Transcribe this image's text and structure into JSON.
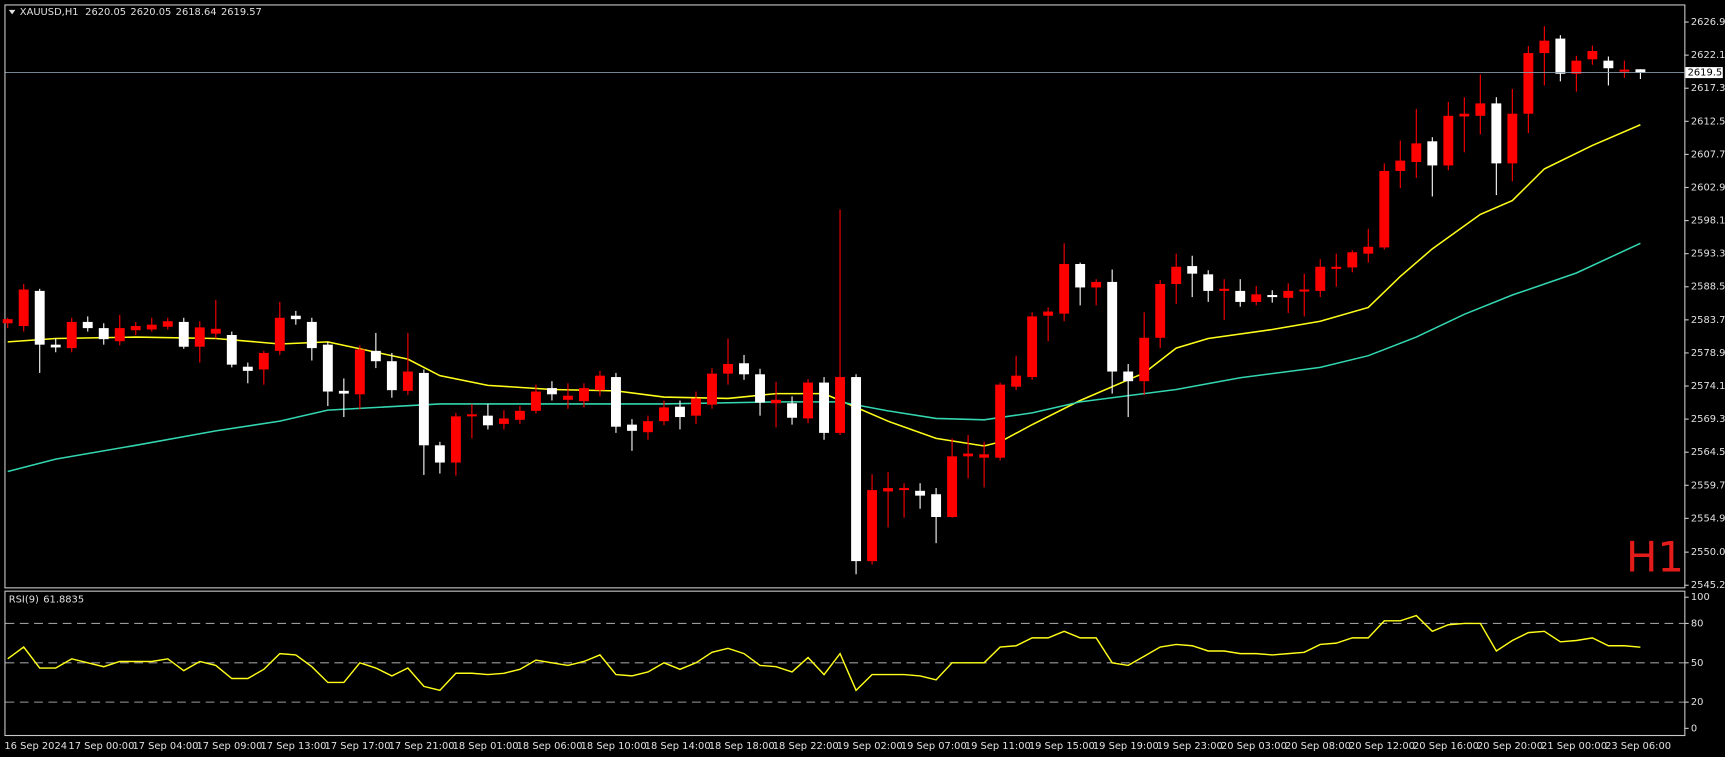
{
  "chart_data": [
    {
      "type": "candlestick",
      "title": "XAUUSD,H1",
      "watermark": "H1",
      "categories": [
        "16 Sep 2024",
        null,
        null,
        null,
        "17 Sep 00:00",
        null,
        null,
        null,
        "17 Sep 04:00",
        null,
        null,
        null,
        "17 Sep 09:00",
        null,
        null,
        null,
        "17 Sep 13:00",
        null,
        null,
        null,
        "17 Sep 17:00",
        null,
        null,
        null,
        "17 Sep 21:00",
        null,
        null,
        null,
        "18 Sep 01:00",
        null,
        null,
        null,
        "18 Sep 06:00",
        null,
        null,
        null,
        "18 Sep 10:00",
        null,
        null,
        null,
        "18 Sep 14:00",
        null,
        null,
        null,
        "18 Sep 18:00",
        null,
        null,
        null,
        "18 Sep 22:00",
        null,
        null,
        null,
        "19 Sep 02:00",
        null,
        null,
        null,
        "19 Sep 07:00",
        null,
        null,
        null,
        "19 Sep 11:00",
        null,
        null,
        null,
        "19 Sep 15:00",
        null,
        null,
        null,
        "19 Sep 19:00",
        null,
        null,
        null,
        "19 Sep 23:00",
        null,
        null,
        null,
        "20 Sep 03:00",
        null,
        null,
        null,
        "20 Sep 08:00",
        null,
        null,
        null,
        "20 Sep 12:00",
        null,
        null,
        null,
        "20 Sep 16:00",
        null,
        null,
        null,
        "20 Sep 20:00",
        null,
        null,
        null,
        "21 Sep 00:00",
        null,
        null,
        null,
        "23 Sep 06:00",
        null,
        null
      ],
      "open": [
        2583.2,
        2582.8,
        2587.9,
        2580.1,
        2579.6,
        2583.4,
        2582.5,
        2580.6,
        2582.2,
        2582.3,
        2582.7,
        2583.4,
        2579.8,
        2581.7,
        2581.5,
        2576.9,
        2576.5,
        2579.2,
        2584.3,
        2583.4,
        2580.1,
        2573.4,
        2572.9,
        2579.2,
        2577.7,
        2573.4,
        2576.0,
        2565.5,
        2563,
        2569.7,
        2569.8,
        2568.6,
        2569.2,
        2570.5,
        2573.8,
        2572.1,
        2571.9,
        2573.5,
        2575.4,
        2568.5,
        2567.4,
        2569,
        2571.1,
        2569.8,
        2571.4,
        2575.9,
        2577.4,
        2575.8,
        2571.6,
        2571.6,
        2569.4,
        2574.6,
        2567.3,
        2575.4,
        2548.7,
        2558.8,
        2559.0,
        2558.9,
        2558.4,
        2555.1,
        2563.9,
        2563.7,
        2563.7,
        2574,
        2575.4,
        2584.3,
        2584.6,
        2591.8,
        2588.4,
        2589.2,
        2576.2,
        2574.8,
        2581.1,
        2588.9,
        2591.5,
        2590.3,
        2587.9,
        2587.9,
        2586.3,
        2587.3,
        2586.9,
        2587.8,
        2587.9,
        2591.1,
        2591.3,
        2593.3,
        2594.2,
        2605.3,
        2606.6,
        2609.6,
        2606.1,
        2613.2,
        2613.3,
        2615.1,
        2606.4,
        2613.6,
        2622.4,
        2624.5,
        2619.4,
        2621.5,
        2621.3,
        2619.7,
        2620.05
      ],
      "high": [
        2584,
        2588.9,
        2588.2,
        2581,
        2584,
        2584.2,
        2583.2,
        2584.4,
        2583.4,
        2584,
        2584,
        2584,
        2583.5,
        2586.6,
        2582,
        2577.5,
        2579.2,
        2586.3,
        2585,
        2584,
        2580.5,
        2575.2,
        2580,
        2581.8,
        2578.9,
        2581.8,
        2576.5,
        2566,
        2570.2,
        2571.5,
        2571.5,
        2570.6,
        2571.2,
        2574.3,
        2574.8,
        2574.5,
        2574.5,
        2576.3,
        2576,
        2569.3,
        2569.8,
        2572,
        2572,
        2573.3,
        2576.7,
        2581,
        2578.6,
        2576.6,
        2574.7,
        2572.6,
        2575.1,
        2575.4,
        2599.7,
        2575.8,
        2561.3,
        2561.6,
        2560,
        2560,
        2559.3,
        2566.5,
        2567,
        2566,
        2574.6,
        2578.5,
        2584.8,
        2585.5,
        2594.8,
        2592,
        2589.6,
        2591,
        2577.3,
        2584.8,
        2589.5,
        2593.3,
        2593,
        2590.9,
        2589.6,
        2589.6,
        2588.6,
        2588,
        2589,
        2590.4,
        2592.5,
        2593.3,
        2593.8,
        2596.9,
        2606.4,
        2609.7,
        2614.3,
        2610.2,
        2615.3,
        2616,
        2619.3,
        2616,
        2617.2,
        2623.4,
        2626.3,
        2625,
        2622,
        2623.5,
        2621.9,
        2621.3,
        2620.05
      ],
      "low": [
        2582.5,
        2582,
        2576,
        2579,
        2579,
        2582,
        2580.1,
        2580,
        2581.5,
        2582,
        2582.3,
        2579.5,
        2577.5,
        2581,
        2576.8,
        2574.5,
        2574.3,
        2578.6,
        2583,
        2577.8,
        2571.2,
        2569.6,
        2570.7,
        2576.7,
        2572.4,
        2572.8,
        2561.2,
        2561.4,
        2561.1,
        2566.5,
        2567.8,
        2567.8,
        2568.6,
        2570.1,
        2572,
        2570.8,
        2571,
        2572.6,
        2567.3,
        2564.7,
        2566.3,
        2568.4,
        2567.8,
        2568.6,
        2570.8,
        2574.3,
        2575,
        2569.8,
        2568.1,
        2568.5,
        2568.7,
        2566.3,
        2567,
        2546.8,
        2548.2,
        2553.6,
        2555,
        2556.3,
        2551.3,
        2555,
        2560.7,
        2559.4,
        2563.3,
        2573.5,
        2575,
        2580.6,
        2583.5,
        2585.8,
        2585.8,
        2573,
        2569.6,
        2572.8,
        2579.6,
        2586,
        2587,
        2586.3,
        2583.7,
        2585.6,
        2585.8,
        2586.2,
        2584.7,
        2584.2,
        2587,
        2588.5,
        2590.6,
        2592,
        2593.9,
        2602.8,
        2604.3,
        2601.6,
        2605.4,
        2608,
        2610.6,
        2601.8,
        2603.8,
        2610.8,
        2617.7,
        2618.3,
        2616.8,
        2620.7,
        2617.7,
        2618.8,
        2618.64
      ],
      "close": [
        2583.8,
        2588.1,
        2580.1,
        2579.7,
        2583.4,
        2582.5,
        2580.9,
        2582.5,
        2582.8,
        2583,
        2583.5,
        2579.8,
        2582.6,
        2582.4,
        2577.2,
        2576.3,
        2578.9,
        2584,
        2583.8,
        2579.6,
        2573.3,
        2573.0,
        2579.4,
        2577.7,
        2573.5,
        2576.2,
        2565.5,
        2563,
        2569.7,
        2570,
        2568.4,
        2569.4,
        2570.5,
        2573.3,
        2572.9,
        2572.7,
        2573.8,
        2575.6,
        2568.2,
        2567.6,
        2569,
        2571,
        2569.6,
        2572.3,
        2575.9,
        2577.3,
        2575.8,
        2571.7,
        2572.1,
        2569.5,
        2574.6,
        2567.3,
        2575.4,
        2548.7,
        2559,
        2559.3,
        2559.3,
        2558.2,
        2555.1,
        2563.9,
        2564.3,
        2564.2,
        2574.3,
        2575.6,
        2584.2,
        2584.9,
        2591.8,
        2588.4,
        2589.2,
        2576.2,
        2574.8,
        2581.1,
        2588.9,
        2591.4,
        2590.4,
        2587.9,
        2588.2,
        2586.3,
        2587.4,
        2587,
        2587.9,
        2588.1,
        2591.4,
        2591.4,
        2593.5,
        2594.3,
        2605.3,
        2606.8,
        2609.3,
        2606.1,
        2613.3,
        2613.6,
        2615.1,
        2606.4,
        2613.6,
        2622.4,
        2624.2,
        2619.4,
        2621.3,
        2622.7,
        2620.2,
        2620,
        2619.57
      ],
      "up_color": "#ff0000",
      "down_color": "#ffffff",
      "overlays": [
        {
          "color": "#ffff1a",
          "x": [
            0,
            3,
            8,
            13,
            17,
            20,
            23,
            25,
            27,
            30,
            34,
            38,
            41,
            45,
            48,
            51,
            52,
            55,
            58,
            61,
            62,
            64,
            67,
            70,
            71,
            73,
            75,
            79,
            82,
            85,
            87,
            89,
            92,
            94,
            96,
            99,
            102
          ],
          "values": [
            2580.5,
            2581,
            2581.2,
            2581,
            2580.2,
            2580.5,
            2579,
            2578,
            2575.6,
            2574.2,
            2573.6,
            2573.4,
            2572.5,
            2572.3,
            2573,
            2573,
            2572,
            2569,
            2566.5,
            2565.4,
            2566,
            2568.5,
            2572,
            2575,
            2576,
            2579.6,
            2581,
            2582.3,
            2583.5,
            2585.5,
            2590,
            2594,
            2599,
            2601,
            2605.6,
            2609,
            2612
          ]
        },
        {
          "color": "#33d6b0",
          "x": [
            0,
            3,
            8,
            13,
            17,
            20,
            27,
            34,
            41,
            48,
            52,
            55,
            58,
            61,
            64,
            67,
            73,
            77,
            82,
            85,
            88,
            91,
            94,
            98,
            102
          ],
          "values": [
            2561.7,
            2563.5,
            2565.5,
            2567.6,
            2569,
            2570.6,
            2571.5,
            2571.5,
            2571.5,
            2571.8,
            2571.8,
            2570.5,
            2569.4,
            2569.2,
            2570.2,
            2571.8,
            2573.6,
            2575.3,
            2576.8,
            2578.5,
            2581.2,
            2584.5,
            2587.3,
            2590.5,
            2594.8
          ]
        }
      ],
      "ylim": [
        2544.9,
        2629.3
      ],
      "yticks": [
        {
          "value": 2626.9,
          "label": "2626.90"
        },
        {
          "value": 2622.1,
          "label": "2622.10"
        },
        {
          "value": 2617.3,
          "label": "2617.30"
        },
        {
          "value": 2612.5,
          "label": "2612.50"
        },
        {
          "value": 2607.7,
          "label": "2607.70"
        },
        {
          "value": 2602.9,
          "label": "2602.90"
        },
        {
          "value": 2598.1,
          "label": "2598.10"
        },
        {
          "value": 2593.3,
          "label": "2593.30"
        },
        {
          "value": 2588.5,
          "label": "2588.50"
        },
        {
          "value": 2583.7,
          "label": "2583.70"
        },
        {
          "value": 2578.9,
          "label": "2578.90"
        },
        {
          "value": 2574.1,
          "label": "2574.10"
        },
        {
          "value": 2569.3,
          "label": "2569.30"
        },
        {
          "value": 2564.5,
          "label": "2564.50"
        },
        {
          "value": 2559.7,
          "label": "2559.70"
        },
        {
          "value": 2554.9,
          "label": "2554.90"
        },
        {
          "value": 2550,
          "label": "2550.00"
        },
        {
          "value": 2545.2,
          "label": "2545.20"
        }
      ]
    },
    {
      "type": "line",
      "title": "RSI(9)",
      "color": "#ffff1a",
      "values": [
        53,
        62,
        46,
        46,
        53,
        50,
        47,
        51,
        51,
        51,
        53,
        44,
        51,
        48,
        38,
        38,
        45,
        57,
        56,
        47,
        35,
        35,
        50,
        46,
        40,
        46,
        32,
        29,
        42,
        42,
        41,
        42,
        45,
        52,
        50,
        48,
        51,
        56,
        41,
        40,
        43,
        50,
        45,
        50,
        58,
        61,
        57,
        48,
        47,
        43,
        54,
        41,
        57,
        29,
        41,
        41,
        41,
        40,
        37,
        50,
        50,
        50,
        62,
        63,
        69,
        69,
        74,
        69,
        69,
        50,
        48,
        55,
        62,
        64,
        63,
        59,
        59,
        57,
        57,
        56,
        57,
        58,
        64,
        65,
        69,
        69,
        82,
        82,
        86,
        74,
        79,
        80,
        80,
        59,
        67,
        73,
        74,
        66,
        67,
        69,
        63,
        63,
        61.8835
      ],
      "ylim": [
        0,
        100
      ],
      "yticks": [
        0,
        20,
        50,
        80,
        100
      ],
      "levels": [
        20,
        50,
        80
      ]
    }
  ]
}
